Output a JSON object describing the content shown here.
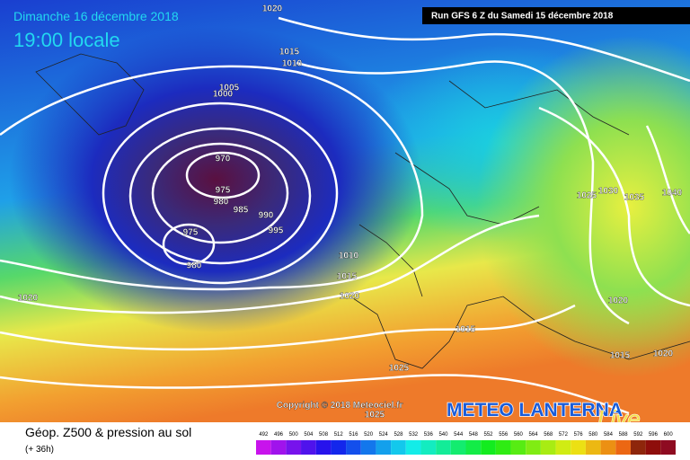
{
  "header": {
    "date": "Dimanche 16 décembre 2018",
    "time": "19:00 locale",
    "run": "Run GFS 6 Z du Samedi 15 décembre 2018"
  },
  "isobar_labels": [
    1020,
    1015,
    1010,
    1005,
    1000,
    970,
    975,
    980,
    985,
    990,
    995,
    975,
    980,
    1010,
    1015,
    1020,
    1020,
    1015,
    1025,
    1025,
    1025,
    1030,
    1035,
    1040,
    1020,
    1015,
    1020
  ],
  "copyright": "Copyright © 2018 Meteociel.fr",
  "logo": {
    "title": "METEO LANTERNA",
    "subtitle": "Live"
  },
  "legend": {
    "title": "Géop. Z500 & pression au sol",
    "lead": "(+ 36h)",
    "scale": [
      492,
      496,
      500,
      504,
      508,
      512,
      516,
      520,
      524,
      528,
      532,
      536,
      540,
      544,
      548,
      552,
      556,
      560,
      564,
      568,
      572,
      576,
      580,
      584,
      588,
      592,
      596,
      600
    ]
  }
}
